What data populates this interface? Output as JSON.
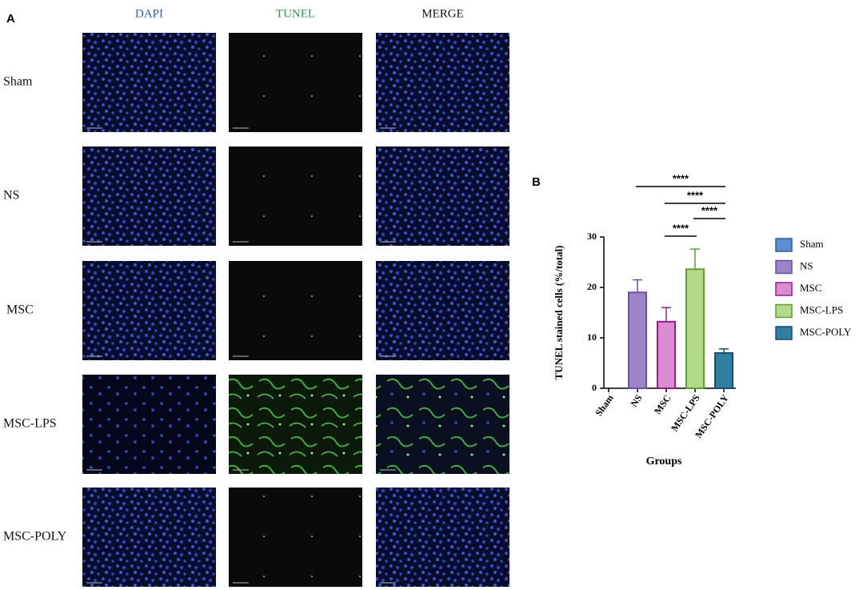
{
  "panel_a": {
    "label": "A",
    "columns": [
      "DAPI",
      "TUNEL",
      "MERGE"
    ],
    "column_colors": [
      "#2a5caa",
      "#2a9a4a",
      "#111111"
    ],
    "rows": [
      "Sham",
      "NS",
      "MSC",
      "MSC-LPS",
      "MSC-POLY"
    ]
  },
  "chart_data": {
    "type": "bar",
    "panel_label": "B",
    "ylabel": "TUNEL stained cells (%/total)",
    "xlabel": "Groups",
    "categories": [
      "Sham",
      "NS",
      "MSC",
      "MSC-LPS",
      "MSC-POLY"
    ],
    "values": [
      0,
      19,
      13.2,
      23.6,
      7
    ],
    "errors": [
      null,
      2.5,
      2.8,
      4,
      0.8
    ],
    "colors": [
      "#5b8fd1",
      "#9b85c9",
      "#d98ccf",
      "#b5d98a",
      "#2f7fa3"
    ],
    "edge_colors": [
      "#2f5f9e",
      "#6a4fa8",
      "#9c1b8c",
      "#5aa02c",
      "#1a4d6b"
    ],
    "ylim": [
      0,
      30
    ],
    "yticks": [
      0,
      10,
      20,
      30
    ],
    "legend": "right",
    "comparisons": [
      {
        "label": "****",
        "groups": [
          "NS",
          "MSC-POLY"
        ]
      },
      {
        "label": "****",
        "groups": [
          "MSC",
          "MSC-POLY"
        ]
      },
      {
        "label": "****",
        "groups": [
          "MSC-LPS",
          "MSC-POLY"
        ]
      },
      {
        "label": "****",
        "groups": [
          "MSC",
          "MSC-LPS"
        ]
      }
    ]
  }
}
